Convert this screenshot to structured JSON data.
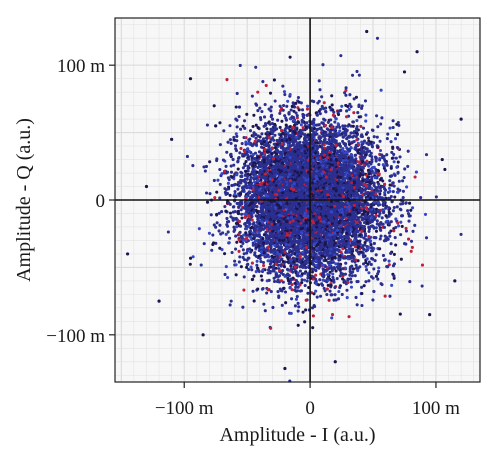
{
  "chart_data": {
    "type": "scatter",
    "title": "",
    "xlabel": "Amplitude - I (a.u.)",
    "ylabel": "Amplitude - Q (a.u.)",
    "xlim": [
      -0.155,
      0.135
    ],
    "ylim": [
      -0.135,
      0.135
    ],
    "x_ticks": [
      {
        "value": -0.1,
        "label": "−100 m"
      },
      {
        "value": 0,
        "label": "0"
      },
      {
        "value": 0.1,
        "label": "100 m"
      }
    ],
    "y_ticks": [
      {
        "value": 0.1,
        "label": "100 m"
      },
      {
        "value": 0,
        "label": "0"
      },
      {
        "value": -0.1,
        "label": "−100 m"
      }
    ],
    "grid": true,
    "legend": "none",
    "series": [
      {
        "color": "#2b2f8f",
        "distribution": "gaussian cloud",
        "center": [
          0.0,
          0.0
        ],
        "std_dev": [
          0.028,
          0.028
        ],
        "point_count": 9000,
        "outer_points": [
          [
            0.045,
            0.125
          ],
          [
            0.085,
            0.11
          ],
          [
            -0.075,
            0.055
          ],
          [
            -0.11,
            0.045
          ],
          [
            0.12,
            0.06
          ],
          [
            -0.145,
            -0.04
          ],
          [
            -0.085,
            -0.1
          ],
          [
            0.115,
            -0.06
          ],
          [
            -0.02,
            -0.125
          ],
          [
            0.02,
            -0.12
          ],
          [
            0.095,
            -0.085
          ],
          [
            -0.12,
            -0.075
          ],
          [
            0.075,
            0.095
          ],
          [
            -0.095,
            0.09
          ],
          [
            0.105,
            0.03
          ],
          [
            -0.13,
            0.01
          ]
        ]
      }
    ],
    "accent_colors": {
      "point_main": "#2b2f8f",
      "point_dark": "#1c1650",
      "point_red": "#c0203a",
      "point_blue": "#3348c8",
      "axis_line": "#111111",
      "grid_line": "#e2e2e2",
      "plot_background": "#f7f7f7"
    }
  }
}
